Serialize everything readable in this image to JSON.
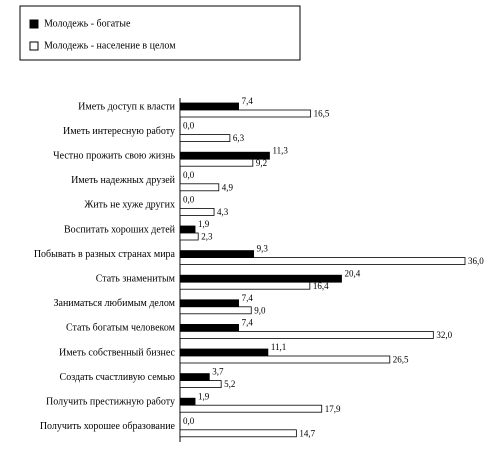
{
  "chart_data": {
    "type": "hbar",
    "categories": [
      "Иметь доступ к власти",
      "Иметь интересную работу",
      "Честно прожить свою жизнь",
      "Иметь надежных друзей",
      "Жить не хуже других",
      "Воспитать хороших детей",
      "Побывать в разных странах мира",
      "Стать знаменитым",
      "Заниматься любимым делом",
      "Стать богатым человеком",
      "Иметь собственный бизнес",
      "Создать счастливую семью",
      "Получить престижную работу",
      "Получить хорошее образование"
    ],
    "series": [
      {
        "name": "Молодежь - богатые",
        "color": "#000000",
        "values": [
          7.4,
          0.0,
          11.3,
          0.0,
          0.0,
          1.9,
          9.3,
          20.4,
          7.4,
          7.4,
          11.1,
          3.7,
          1.9,
          0.0
        ],
        "value_labels": [
          "7,4",
          "0,0",
          "11,3",
          "0,0",
          "0,0",
          "1,9",
          "9,3",
          "20,4",
          "7,4",
          "7,4",
          "11,1",
          "3,7",
          "1,9",
          "0,0"
        ]
      },
      {
        "name": "Молодежь - население в целом",
        "color": "#ffffff",
        "values": [
          16.5,
          6.3,
          9.2,
          4.9,
          4.3,
          2.3,
          36.0,
          16.4,
          9.0,
          32.0,
          26.5,
          5.2,
          17.9,
          14.7
        ],
        "value_labels": [
          "16,5",
          "6,3",
          "9,2",
          "4,9",
          "4,3",
          "2,3",
          "36,0",
          "16,4",
          "9,0",
          "32,0",
          "26,5",
          "5,2",
          "17,9",
          "14,7"
        ]
      }
    ],
    "legend": "top-left"
  }
}
